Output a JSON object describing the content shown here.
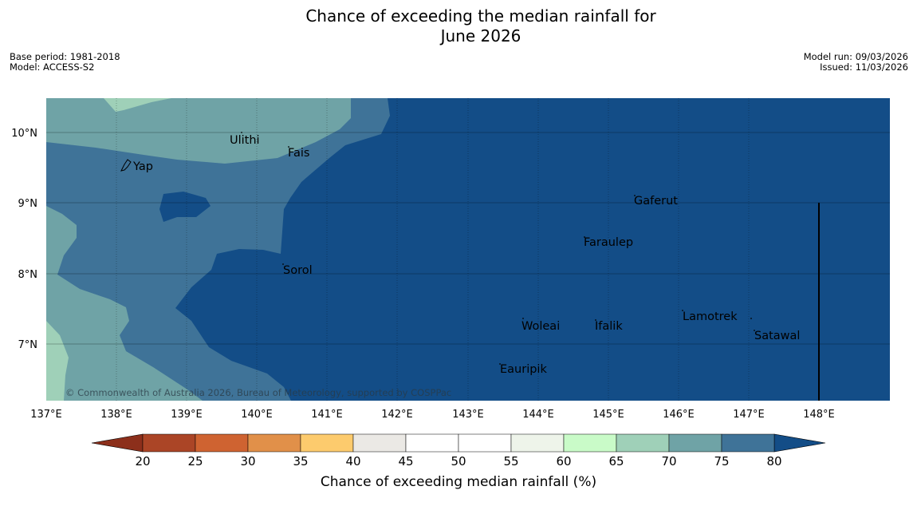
{
  "title": {
    "line1": "Chance of exceeding the median rainfall for",
    "line2": "June 2026"
  },
  "meta": {
    "base_period": "Base period: 1981-2018",
    "model": "Model: ACCESS-S2",
    "model_run": "Model run: 09/03/2026",
    "issued": "Issued: 11/03/2026"
  },
  "map": {
    "lon_ticks": [
      "137°E",
      "138°E",
      "139°E",
      "140°E",
      "141°E",
      "142°E",
      "143°E",
      "144°E",
      "145°E",
      "146°E",
      "147°E",
      "148°E"
    ],
    "lat_ticks": [
      "10°N",
      "9°N",
      "8°N",
      "7°N"
    ],
    "places": [
      {
        "name": "Ulithi"
      },
      {
        "name": "Fais"
      },
      {
        "name": "Yap"
      },
      {
        "name": "Gaferut"
      },
      {
        "name": "Faraulep"
      },
      {
        "name": "Sorol"
      },
      {
        "name": "Lamotrek"
      },
      {
        "name": "Woleai"
      },
      {
        "name": "Ifalik"
      },
      {
        "name": "Satawal"
      },
      {
        "name": "Eauripik"
      }
    ],
    "copyright": "© Commonwealth of Australia 2026, Bureau of Meteorology, supported by COSPPac"
  },
  "colorbar": {
    "ticks": [
      "20",
      "25",
      "30",
      "35",
      "40",
      "45",
      "50",
      "55",
      "60",
      "65",
      "70",
      "75",
      "80"
    ],
    "colors": [
      "#ab4526",
      "#cf6331",
      "#e19049",
      "#fdcb6d",
      "#ebe9e5",
      "#ffffff",
      "#ffffff",
      "#eef4ea",
      "#c9fbc8",
      "#9fd0b8",
      "#6fa3a6",
      "#3f7398"
    ],
    "under_color": "#8c2f1b",
    "over_color": "#134d87",
    "label": "Chance of exceeding median rainfall (%)"
  }
}
